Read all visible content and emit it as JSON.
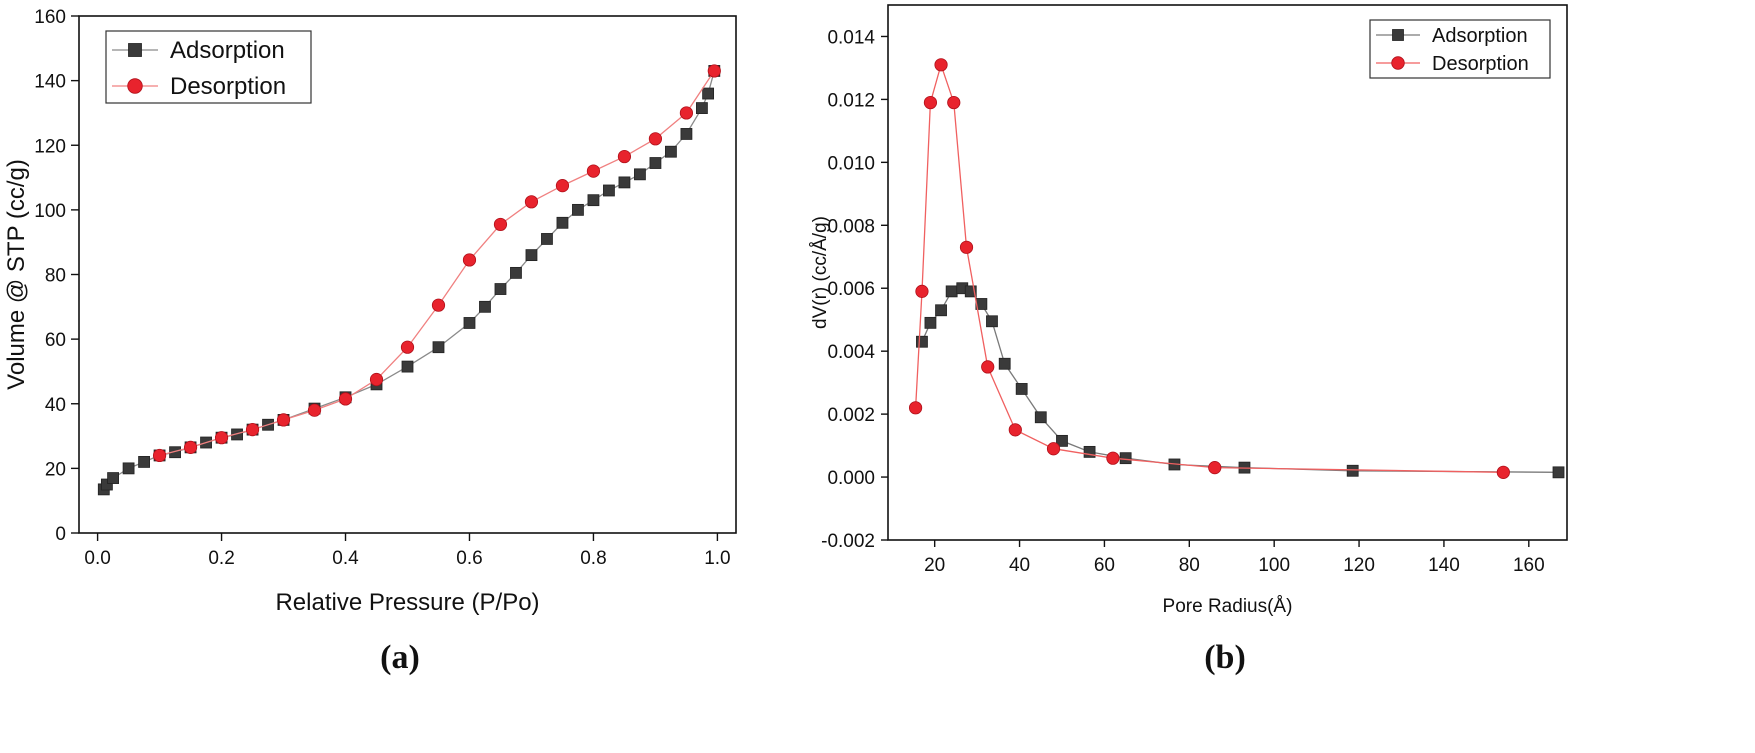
{
  "chart_data": [
    {
      "panel": "a",
      "type": "scatter",
      "caption": "(a)",
      "xlabel": "Relative Pressure (P/Po)",
      "ylabel": "Volume @ STP (cc/g)",
      "xlim": [
        -0.03,
        1.03
      ],
      "ylim": [
        0,
        160
      ],
      "xticks": [
        0.0,
        0.2,
        0.4,
        0.6,
        0.8,
        1.0
      ],
      "xtick_labels": [
        "0.0",
        "0.2",
        "0.4",
        "0.6",
        "0.8",
        "1.0"
      ],
      "yticks": [
        0,
        20,
        40,
        60,
        80,
        100,
        120,
        140,
        160
      ],
      "ytick_labels": [
        "0",
        "20",
        "40",
        "60",
        "80",
        "100",
        "120",
        "140",
        "160"
      ],
      "legend_position": "top-left",
      "series": [
        {
          "name": "Adsorption",
          "marker": "square",
          "color": "#3a3a3a",
          "line_color": "#8a8a8a",
          "x": [
            0.01,
            0.015,
            0.025,
            0.05,
            0.075,
            0.1,
            0.125,
            0.15,
            0.175,
            0.2,
            0.225,
            0.25,
            0.275,
            0.3,
            0.35,
            0.4,
            0.45,
            0.5,
            0.55,
            0.6,
            0.625,
            0.65,
            0.675,
            0.7,
            0.725,
            0.75,
            0.775,
            0.8,
            0.825,
            0.85,
            0.875,
            0.9,
            0.925,
            0.95,
            0.975,
            0.985,
            0.995
          ],
          "y": [
            13.5,
            15,
            17,
            20,
            22,
            24,
            25,
            26.5,
            28,
            29.5,
            30.5,
            32,
            33.5,
            35,
            38.5,
            42,
            46,
            51.5,
            57.5,
            65,
            70,
            75.5,
            80.5,
            86,
            91,
            96,
            100,
            103,
            106,
            108.5,
            111,
            114.5,
            118,
            123.5,
            131.5,
            136,
            143
          ]
        },
        {
          "name": "Desorption",
          "marker": "circle",
          "color": "#e8232d",
          "line_color": "#f08080",
          "x": [
            0.1,
            0.15,
            0.2,
            0.25,
            0.3,
            0.35,
            0.4,
            0.45,
            0.5,
            0.55,
            0.6,
            0.65,
            0.7,
            0.75,
            0.8,
            0.85,
            0.9,
            0.95,
            0.995
          ],
          "y": [
            24,
            26.5,
            29.5,
            32,
            35,
            38,
            41.5,
            47.5,
            57.5,
            70.5,
            84.5,
            95.5,
            102.5,
            107.5,
            112,
            116.5,
            122,
            130,
            143
          ]
        }
      ]
    },
    {
      "panel": "b",
      "type": "line",
      "caption": "(b)",
      "xlabel": "Pore Radius(Å)",
      "ylabel": "dV(r) (cc/Å/g)",
      "xlim": [
        9,
        169
      ],
      "ylim": [
        -0.002,
        0.015
      ],
      "xticks": [
        20,
        40,
        60,
        80,
        100,
        120,
        140,
        160
      ],
      "xtick_labels": [
        "20",
        "40",
        "60",
        "80",
        "100",
        "120",
        "140",
        "160"
      ],
      "yticks": [
        -0.002,
        0,
        0.002,
        0.004,
        0.006,
        0.008,
        0.01,
        0.012,
        0.014
      ],
      "ytick_labels": [
        "-0.002",
        "0.000",
        "0.002",
        "0.004",
        "0.006",
        "0.008",
        "0.010",
        "0.012",
        "0.014"
      ],
      "legend_position": "top-right",
      "series": [
        {
          "name": "Adsorption",
          "marker": "square",
          "color": "#3a3a3a",
          "line_color": "#7a7a7a",
          "x": [
            17,
            19,
            21.5,
            24,
            26.5,
            28.5,
            31,
            33.5,
            36.5,
            40.5,
            45,
            50,
            56.5,
            65,
            76.5,
            93,
            118.5,
            167
          ],
          "y": [
            0.0043,
            0.0049,
            0.0053,
            0.0059,
            0.006,
            0.0059,
            0.0055,
            0.00495,
            0.0036,
            0.0028,
            0.0019,
            0.00115,
            0.0008,
            0.0006,
            0.0004,
            0.0003,
            0.0002,
            0.00015
          ]
        },
        {
          "name": "Desorption",
          "marker": "circle",
          "color": "#e8232d",
          "line_color": "#f06060",
          "x": [
            15.5,
            17,
            19,
            21.5,
            24.5,
            27.5,
            32.5,
            39,
            48,
            62,
            86,
            154
          ],
          "y": [
            0.0022,
            0.0059,
            0.0119,
            0.0131,
            0.0119,
            0.0073,
            0.0035,
            0.0015,
            0.0009,
            0.0006,
            0.0003,
            0.00015
          ]
        }
      ]
    }
  ]
}
